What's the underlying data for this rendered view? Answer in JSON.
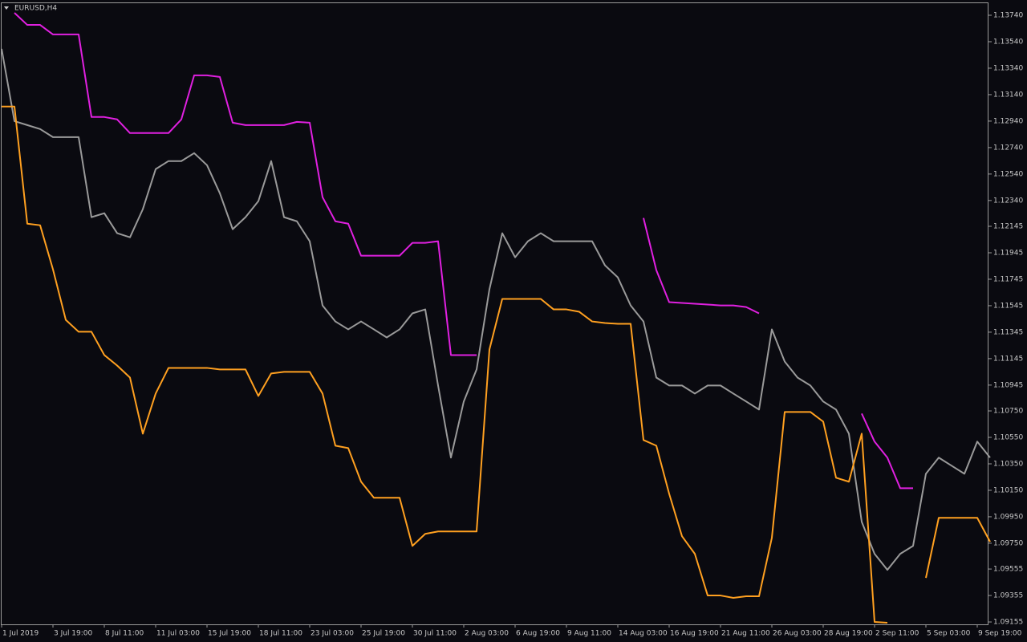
{
  "chart_data": {
    "type": "line",
    "title": "EURUSD,H4",
    "categories": [
      "1 Jul 2019",
      null,
      null,
      null,
      "3 Jul 19:00",
      null,
      null,
      null,
      "8 Jul 11:00",
      null,
      null,
      null,
      "11 Jul 03:00",
      null,
      null,
      null,
      "15 Jul 19:00",
      null,
      null,
      null,
      "18 Jul 11:00",
      null,
      null,
      null,
      "23 Jul 03:00",
      null,
      null,
      null,
      "25 Jul 19:00",
      null,
      null,
      null,
      "30 Jul 11:00",
      null,
      null,
      null,
      "2 Aug 03:00",
      null,
      null,
      null,
      "6 Aug 19:00",
      null,
      null,
      null,
      "9 Aug 11:00",
      null,
      null,
      null,
      "14 Aug 03:00",
      null,
      null,
      null,
      "16 Aug 19:00",
      null,
      null,
      null,
      "21 Aug 11:00",
      null,
      null,
      null,
      "26 Aug 03:00",
      null,
      null,
      null,
      "28 Aug 19:00",
      null,
      null,
      null,
      "2 Sep 11:00",
      null,
      null,
      null,
      "5 Sep 03:00",
      null,
      null,
      null,
      "9 Sep 19:00",
      null
    ],
    "series": [
      {
        "color": "#9a9a9a",
        "values": [
          1.13486,
          1.1294,
          1.1291,
          1.1288,
          1.12819,
          1.12819,
          1.12819,
          1.12214,
          1.12244,
          1.12093,
          1.12062,
          1.12274,
          1.12577,
          1.12638,
          1.12638,
          1.12698,
          1.12607,
          1.12395,
          1.12123,
          1.12214,
          1.12335,
          1.12638,
          1.12214,
          1.12183,
          1.12032,
          1.11547,
          1.11426,
          1.11366,
          1.11426,
          1.11366,
          1.11305,
          1.11366,
          1.11487,
          1.11517,
          1.10942,
          1.10397,
          1.10821,
          1.11063,
          1.11669,
          1.12093,
          1.11911,
          1.12032,
          1.12093,
          1.12032,
          1.12032,
          1.12032,
          1.12032,
          1.1185,
          1.11759,
          1.11547,
          1.11426,
          1.11002,
          1.10942,
          1.10942,
          1.10881,
          1.10942,
          1.10942,
          1.10881,
          1.10821,
          1.1076,
          1.11366,
          1.11123,
          1.11002,
          1.10942,
          1.10821,
          1.1076,
          1.10578,
          1.09912,
          1.0967,
          1.09549,
          1.0967,
          1.0973,
          1.10275,
          1.10397,
          1.10336,
          1.10275,
          1.10518,
          1.10397
        ]
      },
      {
        "color": "#e020e0",
        "values": [
          null,
          1.13758,
          1.13667,
          1.13667,
          1.13595,
          1.13595,
          1.13595,
          1.12971,
          1.12971,
          1.12953,
          1.1285,
          1.1285,
          1.1285,
          1.1285,
          1.12953,
          1.13286,
          1.13286,
          1.13274,
          1.12928,
          1.1291,
          1.1291,
          1.1291,
          1.1291,
          1.12934,
          1.12928,
          1.12365,
          1.12183,
          1.12165,
          1.11923,
          1.11923,
          1.11923,
          1.11923,
          1.1202,
          1.1202,
          1.12032,
          1.11172,
          1.11172,
          1.11172,
          null,
          null,
          null,
          null,
          null,
          null,
          null,
          null,
          null,
          null,
          null,
          null,
          1.12208,
          1.11814,
          1.11572,
          1.11566,
          1.1156,
          1.11554,
          1.11547,
          1.11547,
          1.11535,
          1.11487,
          null,
          null,
          null,
          null,
          null,
          null,
          null,
          1.1073,
          1.10518,
          1.10397,
          1.10166,
          1.10166,
          null,
          null,
          null,
          null,
          null,
          null
        ]
      },
      {
        "color": "#ffa020",
        "values": [
          1.1305,
          1.1305,
          1.12165,
          1.12153,
          1.1182,
          1.11438,
          1.11348,
          1.11348,
          1.11172,
          1.11093,
          1.11002,
          1.10578,
          1.10881,
          1.11075,
          1.11075,
          1.11075,
          1.11075,
          1.11063,
          1.11063,
          1.11063,
          1.10863,
          1.11033,
          1.11045,
          1.11045,
          1.11045,
          1.10881,
          1.10487,
          1.10469,
          1.10215,
          1.10094,
          1.10094,
          1.10094,
          1.0973,
          1.09821,
          1.09839,
          1.09839,
          1.09839,
          1.09839,
          1.11214,
          1.11596,
          1.11596,
          1.11596,
          1.11596,
          1.11517,
          1.11517,
          1.11499,
          1.11426,
          1.11414,
          1.11408,
          1.11408,
          1.1053,
          1.10487,
          1.10124,
          1.09803,
          1.0967,
          1.09355,
          1.09355,
          1.09337,
          1.09349,
          1.09349,
          1.09791,
          1.10742,
          1.10742,
          1.10742,
          1.10669,
          1.10245,
          1.10215,
          1.10578,
          1.09155,
          1.09149,
          null,
          null,
          1.09488,
          1.09942,
          1.09942,
          1.09942,
          1.09942,
          1.09761
        ]
      }
    ],
    "ylim": [
      1.09137,
      1.13831
    ],
    "yticks": [
      {
        "value": 1.1374,
        "label": "1.13740"
      },
      {
        "value": 1.1354,
        "label": "1.13540"
      },
      {
        "value": 1.1334,
        "label": "1.13340"
      },
      {
        "value": 1.1314,
        "label": "1.13140"
      },
      {
        "value": 1.1294,
        "label": "1.12940"
      },
      {
        "value": 1.1274,
        "label": "1.12740"
      },
      {
        "value": 1.1254,
        "label": "1.12540"
      },
      {
        "value": 1.1234,
        "label": "1.12340"
      },
      1.12145,
      1.11945,
      1.11745,
      1.11545,
      1.11345,
      1.11145,
      1.10945,
      {
        "value": 1.1075,
        "label": "1.10750"
      },
      {
        "value": 1.1055,
        "label": "1.10550"
      },
      {
        "value": 1.1035,
        "label": "1.10350"
      },
      {
        "value": 1.1015,
        "label": "1.10150"
      },
      {
        "value": 1.0995,
        "label": "1.09950"
      },
      {
        "value": 1.0975,
        "label": "1.09750"
      },
      1.09555,
      1.09355,
      1.09155
    ],
    "grid": false
  }
}
